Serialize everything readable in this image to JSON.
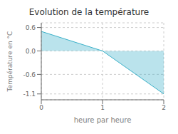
{
  "chart_data": {
    "type": "area",
    "title": "Evolution de la température",
    "xlabel": "heure par heure",
    "ylabel": "Température en °C",
    "x": [
      0,
      1,
      2
    ],
    "values": [
      0.5,
      0.0,
      -1.1
    ],
    "xlim": [
      0,
      2
    ],
    "ylim": [
      -1.25,
      0.72
    ],
    "xticks": [
      0,
      1,
      2
    ],
    "yticks": [
      0.6,
      {
        "value": 0,
        "label": "0.0"
      },
      -0.6,
      -1.1
    ],
    "color": "#3ab0c8",
    "grid": true
  }
}
